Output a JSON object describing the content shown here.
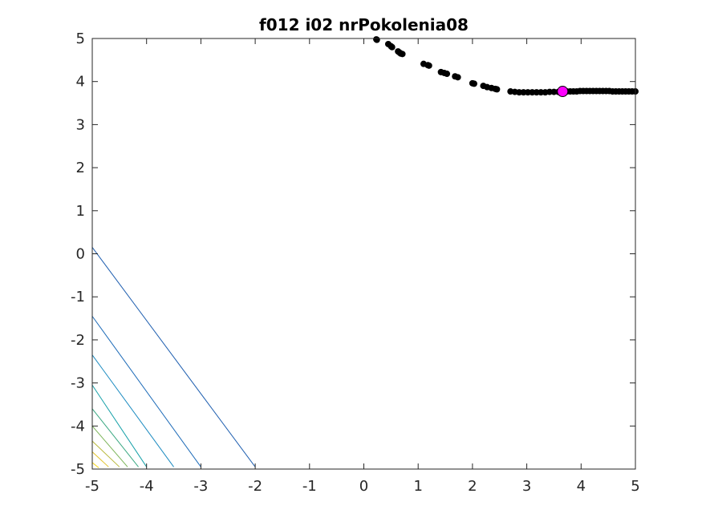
{
  "chart_data": {
    "type": "scatter",
    "title": "f012 i02 nrPokolenia08",
    "xlabel": "",
    "ylabel": "",
    "xlim": [
      -5,
      5
    ],
    "ylim": [
      -5,
      5
    ],
    "x_ticks": [
      "-5",
      "-4",
      "-3",
      "-2",
      "-1",
      "0",
      "1",
      "2",
      "3",
      "4",
      "5"
    ],
    "y_ticks": [
      "5",
      "4",
      "3",
      "2",
      "1",
      "0",
      "-1",
      "-2",
      "-3",
      "-4",
      "-5"
    ],
    "grid": false,
    "legend": "none",
    "background_contours": [
      {
        "color": "#1f5fb0",
        "points": [
          [
            -5.0,
            0.15
          ],
          [
            -2.0,
            -4.95
          ]
        ]
      },
      {
        "color": "#1d6bb8",
        "points": [
          [
            -5.0,
            -1.45
          ],
          [
            -3.0,
            -4.95
          ]
        ]
      },
      {
        "color": "#1a8ac0",
        "points": [
          [
            -5.0,
            -2.35
          ],
          [
            -3.5,
            -4.95
          ]
        ]
      },
      {
        "color": "#15a0a8",
        "points": [
          [
            -5.0,
            -3.05
          ],
          [
            -4.0,
            -4.95
          ]
        ]
      },
      {
        "color": "#3aa882",
        "points": [
          [
            -5.0,
            -3.6
          ],
          [
            -4.15,
            -4.95
          ]
        ]
      },
      {
        "color": "#7bb458",
        "points": [
          [
            -5.0,
            -4.0
          ],
          [
            -4.35,
            -4.95
          ]
        ]
      },
      {
        "color": "#b8b83a",
        "points": [
          [
            -5.0,
            -4.35
          ],
          [
            -4.5,
            -4.95
          ]
        ]
      },
      {
        "color": "#e0c22a",
        "points": [
          [
            -5.0,
            -4.6
          ],
          [
            -4.7,
            -4.95
          ]
        ]
      },
      {
        "color": "#f5d61a",
        "points": [
          [
            -5.0,
            -4.85
          ],
          [
            -4.88,
            -4.97
          ]
        ]
      }
    ],
    "series": [
      {
        "color": "#000000",
        "marker": "circle",
        "points": [
          [
            0.23,
            4.98
          ],
          [
            0.24,
            4.97
          ],
          [
            0.45,
            4.87
          ],
          [
            0.5,
            4.82
          ],
          [
            0.52,
            4.8
          ],
          [
            0.63,
            4.7
          ],
          [
            0.66,
            4.67
          ],
          [
            0.68,
            4.65
          ],
          [
            0.71,
            4.64
          ],
          [
            1.1,
            4.41
          ],
          [
            1.18,
            4.38
          ],
          [
            1.2,
            4.37
          ],
          [
            1.42,
            4.22
          ],
          [
            1.48,
            4.2
          ],
          [
            1.53,
            4.18
          ],
          [
            1.68,
            4.12
          ],
          [
            1.73,
            4.1
          ],
          [
            2.0,
            3.96
          ],
          [
            2.03,
            3.95
          ],
          [
            2.2,
            3.9
          ],
          [
            2.27,
            3.87
          ],
          [
            2.35,
            3.85
          ],
          [
            2.42,
            3.83
          ],
          [
            2.45,
            3.82
          ],
          [
            2.7,
            3.77
          ],
          [
            2.78,
            3.76
          ],
          [
            2.86,
            3.75
          ],
          [
            2.94,
            3.75
          ],
          [
            3.02,
            3.75
          ],
          [
            3.1,
            3.75
          ],
          [
            3.18,
            3.75
          ],
          [
            3.26,
            3.75
          ],
          [
            3.34,
            3.75
          ],
          [
            3.42,
            3.76
          ],
          [
            3.5,
            3.76
          ],
          [
            3.58,
            3.76
          ],
          [
            3.66,
            3.77
          ],
          [
            3.74,
            3.77
          ],
          [
            3.8,
            3.77
          ],
          [
            3.86,
            3.77
          ],
          [
            3.92,
            3.77
          ],
          [
            3.98,
            3.78
          ],
          [
            4.04,
            3.78
          ],
          [
            4.1,
            3.78
          ],
          [
            4.16,
            3.78
          ],
          [
            4.22,
            3.78
          ],
          [
            4.28,
            3.78
          ],
          [
            4.34,
            3.78
          ],
          [
            4.4,
            3.78
          ],
          [
            4.46,
            3.78
          ],
          [
            4.52,
            3.78
          ],
          [
            4.58,
            3.77
          ],
          [
            4.64,
            3.77
          ],
          [
            4.7,
            3.77
          ],
          [
            4.76,
            3.77
          ],
          [
            4.82,
            3.77
          ],
          [
            4.88,
            3.77
          ],
          [
            4.94,
            3.77
          ],
          [
            5.0,
            3.77
          ]
        ]
      },
      {
        "color": "#ff00ff",
        "marker": "circle-large",
        "points": [
          [
            3.66,
            3.77
          ]
        ]
      }
    ]
  }
}
